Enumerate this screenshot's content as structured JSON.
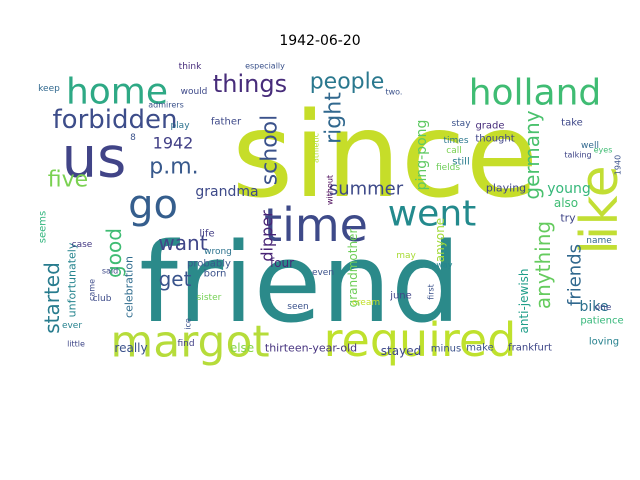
{
  "title": "1942-06-20",
  "words": [
    {
      "text": "since",
      "color": "#c6dd29"
    },
    {
      "text": "friend",
      "color": "#2b8a8a"
    },
    {
      "text": "margot",
      "color": "#b6dc3a"
    },
    {
      "text": "required",
      "color": "#bfe12d"
    },
    {
      "text": "time",
      "color": "#3e4a89"
    },
    {
      "text": "like",
      "color": "#c2de34"
    },
    {
      "text": "holland",
      "color": "#3fbc73"
    },
    {
      "text": "home",
      "color": "#2ea985"
    },
    {
      "text": "us",
      "color": "#414487"
    },
    {
      "text": "went",
      "color": "#238a8d"
    },
    {
      "text": "go",
      "color": "#355e8d"
    },
    {
      "text": "forbidden",
      "color": "#3d4d8a"
    },
    {
      "text": "people",
      "color": "#2a788e"
    },
    {
      "text": "things",
      "color": "#472c7a"
    },
    {
      "text": "five",
      "color": "#7ad151"
    },
    {
      "text": "p.m.",
      "color": "#38598c"
    },
    {
      "text": "school",
      "color": "#3b528b"
    },
    {
      "text": "right",
      "color": "#31688e"
    },
    {
      "text": "summer",
      "color": "#3e4a89"
    },
    {
      "text": "germany",
      "color": "#4ac16d"
    },
    {
      "text": "good",
      "color": "#3fbc73"
    },
    {
      "text": "want",
      "color": "#404688"
    },
    {
      "text": "get",
      "color": "#3a548c"
    },
    {
      "text": "started",
      "color": "#287c8e"
    },
    {
      "text": "anything",
      "color": "#65cb5e"
    },
    {
      "text": "friends",
      "color": "#31688e"
    },
    {
      "text": "1942",
      "color": "#424086"
    },
    {
      "text": "grandma",
      "color": "#3e4a89"
    },
    {
      "text": "ping-pong",
      "color": "#5ec962"
    },
    {
      "text": "dipper",
      "color": "#482475"
    },
    {
      "text": "young",
      "color": "#35b779"
    },
    {
      "text": "bike",
      "color": "#2c728e"
    },
    {
      "text": "anyone",
      "color": "#a2da37"
    },
    {
      "text": "grandmother",
      "color": "#6ece58"
    },
    {
      "text": "anti-jewish",
      "color": "#1f9e89"
    },
    {
      "text": "celebration",
      "color": "#2f6c8e"
    },
    {
      "text": "unfortunately",
      "color": "#25848e"
    },
    {
      "text": "thirteen-year-old",
      "color": "#46337f"
    },
    {
      "text": "really",
      "color": "#3b528b"
    },
    {
      "text": "else",
      "color": "#86d549"
    },
    {
      "text": "stayed",
      "color": "#3e4989"
    },
    {
      "text": "minus",
      "color": "#3b528b"
    },
    {
      "text": "make",
      "color": "#3b528b"
    },
    {
      "text": "frankfurt",
      "color": "#3f4788"
    },
    {
      "text": "loving",
      "color": "#26818e"
    },
    {
      "text": "patience",
      "color": "#35b779"
    },
    {
      "text": "june",
      "color": "#404588"
    },
    {
      "text": "four",
      "color": "#482878"
    },
    {
      "text": "also",
      "color": "#3fbc73"
    },
    {
      "text": "try",
      "color": "#404688"
    },
    {
      "text": "name",
      "color": "#31688e"
    },
    {
      "text": "playing",
      "color": "#404688"
    },
    {
      "text": "grade",
      "color": "#472d7b"
    },
    {
      "text": "take",
      "color": "#3f4889"
    },
    {
      "text": "thought",
      "color": "#404588"
    },
    {
      "text": "still",
      "color": "#287c8e"
    },
    {
      "text": "times",
      "color": "#2a778e"
    },
    {
      "text": "call",
      "color": "#7ad151"
    },
    {
      "text": "fields",
      "color": "#6ece58"
    },
    {
      "text": "stay",
      "color": "#3b528b"
    },
    {
      "text": "without",
      "color": "#440154"
    },
    {
      "text": "athletic",
      "color": "#b5de2b"
    },
    {
      "text": "father",
      "color": "#3e4989"
    },
    {
      "text": "life",
      "color": "#433e85"
    },
    {
      "text": "wrong",
      "color": "#2c738e"
    },
    {
      "text": "born",
      "color": "#3b528b"
    },
    {
      "text": "probably",
      "color": "#38598c"
    },
    {
      "text": "said",
      "color": "#3e4a89"
    },
    {
      "text": "case",
      "color": "#443983"
    },
    {
      "text": "seems",
      "color": "#2fb47c"
    },
    {
      "text": "club",
      "color": "#3e4c8a"
    },
    {
      "text": "ever",
      "color": "#26828e"
    },
    {
      "text": "little",
      "color": "#3f4788"
    },
    {
      "text": "find",
      "color": "#424086"
    },
    {
      "text": "sister",
      "color": "#75d054"
    },
    {
      "text": "even",
      "color": "#3b528b"
    },
    {
      "text": "seen",
      "color": "#3b528b"
    },
    {
      "text": "may",
      "color": "#a8db34"
    },
    {
      "text": "away",
      "color": "#25858e"
    },
    {
      "text": "one",
      "color": "#3e4a89"
    },
    {
      "text": "well",
      "color": "#31688e"
    },
    {
      "text": "eyes",
      "color": "#3fbc73"
    },
    {
      "text": "talking",
      "color": "#404688"
    },
    {
      "text": "think",
      "color": "#472d7b"
    },
    {
      "text": "would",
      "color": "#3e4989"
    },
    {
      "text": "play",
      "color": "#2c728e"
    },
    {
      "text": "admirers",
      "color": "#3b528b"
    },
    {
      "text": "keep",
      "color": "#31688e"
    },
    {
      "text": "especially",
      "color": "#3b528b"
    },
    {
      "text": "came",
      "color": "#3e4c8a"
    },
    {
      "text": "ice",
      "color": "#3b528b"
    },
    {
      "text": "cream",
      "color": "#c2df23"
    },
    {
      "text": "first",
      "color": "#3b528b"
    },
    {
      "text": "two.",
      "color": "#3b528b"
    },
    {
      "text": "1940",
      "color": "#3b528b"
    },
    {
      "text": "8",
      "color": "#3b528b"
    }
  ]
}
